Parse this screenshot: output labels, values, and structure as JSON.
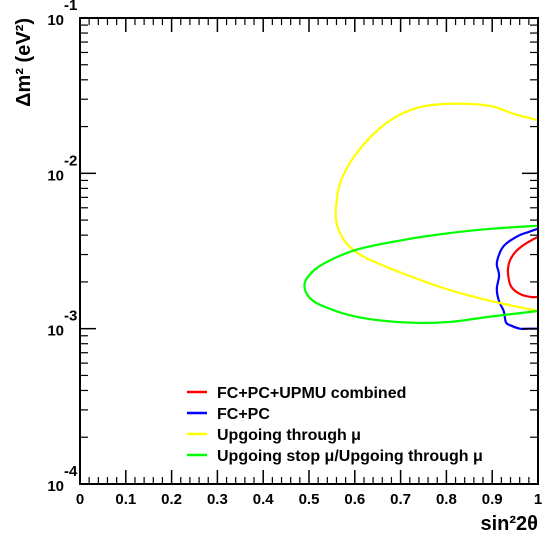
{
  "chart_data": {
    "type": "line",
    "xlabel": "sin²2θ",
    "ylabel": "Δm² (eV²)",
    "x_axis": {
      "range": [
        0,
        1
      ],
      "ticks": [
        0,
        0.1,
        0.2,
        0.3,
        0.4,
        0.5,
        0.6,
        0.7,
        0.8,
        0.9,
        1
      ],
      "tick_labels": [
        "0",
        "0.1",
        "0.2",
        "0.3",
        "0.4",
        "0.5",
        "0.6",
        "0.7",
        "0.8",
        "0.9",
        "1"
      ]
    },
    "y_axis": {
      "scale": "log",
      "range": [
        0.0001,
        0.1
      ],
      "ticks": [
        {
          "value": 0.1,
          "mantissa": "10",
          "exponent": "-1"
        },
        {
          "value": 0.01,
          "mantissa": "10",
          "exponent": "-2"
        },
        {
          "value": 0.001,
          "mantissa": "10",
          "exponent": "-3"
        },
        {
          "value": 0.0001,
          "mantissa": "10",
          "exponent": "-4"
        }
      ]
    },
    "grid": false,
    "legend_position": "bottom-left",
    "series": [
      {
        "name": "FC+PC+UPMU combined",
        "color": "#ff0000",
        "x": [
          1.0,
          0.985,
          0.965,
          0.95,
          0.94,
          0.935,
          0.935,
          0.94,
          0.95,
          0.965,
          0.985,
          1.0
        ],
        "y": [
          0.0039,
          0.0037,
          0.0034,
          0.0031,
          0.0028,
          0.0025,
          0.0022,
          0.0019,
          0.00175,
          0.00165,
          0.0016,
          0.0016
        ]
      },
      {
        "name": "FC+PC",
        "color": "#0000ff",
        "x": [
          1.0,
          0.98,
          0.96,
          0.94,
          0.925,
          0.915,
          0.91,
          0.915,
          0.91,
          0.915,
          0.925,
          0.93,
          0.94,
          0.96,
          0.98,
          1.0
        ],
        "y": [
          0.0044,
          0.0042,
          0.004,
          0.0037,
          0.0034,
          0.003,
          0.0026,
          0.0022,
          0.0018,
          0.0015,
          0.0013,
          0.0011,
          0.00105,
          0.001,
          0.001,
          0.001
        ]
      },
      {
        "name": "Upgoing through μ",
        "color": "#ffff00",
        "x": [
          1.0,
          0.95,
          0.9,
          0.85,
          0.8,
          0.75,
          0.7,
          0.65,
          0.6,
          0.57,
          0.56,
          0.56,
          0.58,
          0.62,
          0.7,
          0.8,
          0.9,
          1.0
        ],
        "y": [
          0.022,
          0.024,
          0.027,
          0.028,
          0.028,
          0.027,
          0.024,
          0.019,
          0.013,
          0.009,
          0.0065,
          0.0048,
          0.0036,
          0.0029,
          0.0023,
          0.0018,
          0.0015,
          0.0013
        ]
      },
      {
        "name": "Upgoing stop μ/Upgoing through μ",
        "color": "#00ff00",
        "x": [
          1.0,
          0.9,
          0.8,
          0.7,
          0.6,
          0.53,
          0.5,
          0.49,
          0.5,
          0.53,
          0.6,
          0.7,
          0.8,
          0.9,
          1.0
        ],
        "y": [
          0.0046,
          0.0044,
          0.0041,
          0.0037,
          0.0032,
          0.0026,
          0.0022,
          0.0019,
          0.0016,
          0.0014,
          0.0012,
          0.0011,
          0.0011,
          0.0012,
          0.0013
        ]
      }
    ]
  }
}
